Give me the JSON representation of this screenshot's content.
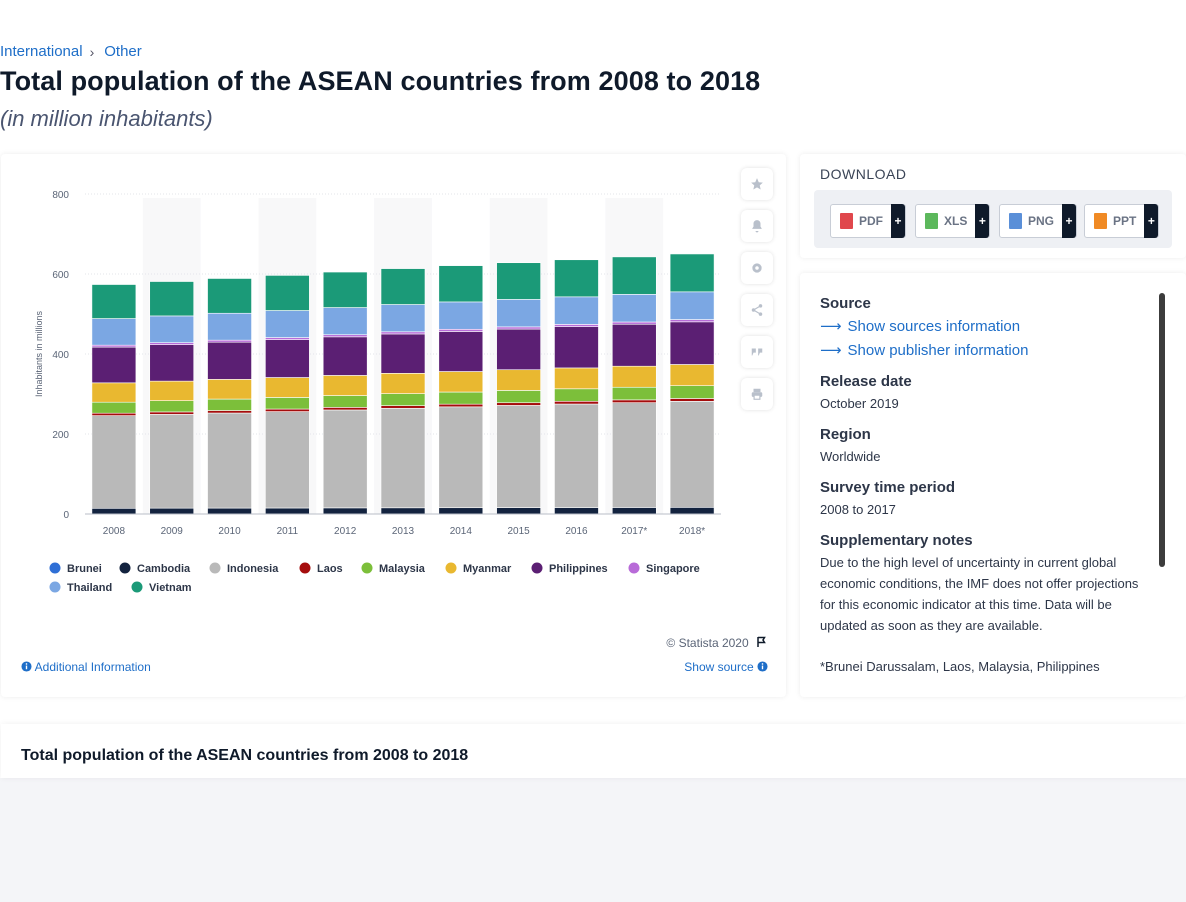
{
  "breadcrumb": {
    "item1": "International",
    "sep": "›",
    "item2": "Other"
  },
  "page": {
    "title": "Total population of the ASEAN countries from 2008 to 2018",
    "subtitle": "(in million inhabitants)"
  },
  "chart_card": {
    "copyright": "© Statista 2020",
    "additional_info": "Additional Information",
    "show_source": "Show source"
  },
  "download": {
    "title": "DOWNLOAD",
    "buttons": [
      {
        "label": "PDF",
        "color": "#e0474c"
      },
      {
        "label": "XLS",
        "color": "#5cb85c"
      },
      {
        "label": "PNG",
        "color": "#5a8fd8"
      },
      {
        "label": "PPT",
        "color": "#f08a24"
      }
    ],
    "plus": "+"
  },
  "info": {
    "source_h": "Source",
    "show_sources": "Show sources information",
    "show_publisher": "Show publisher information",
    "release_h": "Release date",
    "release_v": "October 2019",
    "region_h": "Region",
    "region_v": "Worldwide",
    "survey_h": "Survey time period",
    "survey_v": "2008 to 2017",
    "notes_h": "Supplementary notes",
    "notes_v": "Due to the high level of uncertainty in current global economic conditions, the IMF does not offer projections for this economic indicator at this time. Data will be updated as soon as they are available.",
    "notes_v2": "*Brunei Darussalam, Laos, Malaysia, Philippines"
  },
  "bottom": {
    "title": "Total population of the ASEAN countries from 2008 to 2018"
  },
  "chart_data": {
    "type": "bar",
    "stacked": true,
    "title": "",
    "xlabel": "",
    "ylabel": "Inhabitants in millions",
    "ylim": [
      0,
      800
    ],
    "yticks": [
      0,
      200,
      400,
      600,
      800
    ],
    "grid": true,
    "legend_position": "bottom-left",
    "categories": [
      "2008",
      "2009",
      "2010",
      "2011",
      "2012",
      "2013",
      "2014",
      "2015",
      "2016",
      "2017*",
      "2018*"
    ],
    "series": [
      {
        "name": "Brunei",
        "color": "#2f6fd6",
        "values": [
          0.4,
          0.4,
          0.4,
          0.4,
          0.4,
          0.4,
          0.4,
          0.4,
          0.4,
          0.4,
          0.4
        ]
      },
      {
        "name": "Cambodia",
        "color": "#13233f",
        "values": [
          13.9,
          14.2,
          14.4,
          14.6,
          14.9,
          15.1,
          15.3,
          15.5,
          15.8,
          16.0,
          16.3
        ]
      },
      {
        "name": "Indonesia",
        "color": "#b9b9b9",
        "values": [
          231.6,
          234.4,
          237.6,
          241.0,
          244.8,
          248.8,
          252.2,
          255.5,
          258.7,
          261.9,
          265.0
        ]
      },
      {
        "name": "Laos",
        "color": "#a50d0d",
        "values": [
          6.1,
          6.2,
          6.3,
          6.4,
          6.5,
          6.6,
          6.7,
          6.8,
          6.9,
          7.0,
          7.1
        ]
      },
      {
        "name": "Malaysia",
        "color": "#7cbf3a",
        "values": [
          27.5,
          28.1,
          28.6,
          29.0,
          29.5,
          30.0,
          30.3,
          30.7,
          31.2,
          31.6,
          32.0
        ]
      },
      {
        "name": "Myanmar",
        "color": "#e9b830",
        "values": [
          48.4,
          48.9,
          49.3,
          49.8,
          50.3,
          50.8,
          51.3,
          51.8,
          52.2,
          52.6,
          53.0
        ]
      },
      {
        "name": "Philippines",
        "color": "#5b1f73",
        "values": [
          89.4,
          91.1,
          92.9,
          94.7,
          96.5,
          98.4,
          100.1,
          101.6,
          103.2,
          104.9,
          106.6
        ]
      },
      {
        "name": "Singapore",
        "color": "#b86bd8",
        "values": [
          4.8,
          5.0,
          5.1,
          5.2,
          5.3,
          5.4,
          5.5,
          5.5,
          5.6,
          5.6,
          5.7
        ]
      },
      {
        "name": "Thailand",
        "color": "#7ba7e3",
        "values": [
          66.5,
          66.9,
          67.3,
          67.6,
          67.9,
          68.2,
          68.4,
          68.7,
          68.9,
          69.1,
          69.3
        ]
      },
      {
        "name": "Vietnam",
        "color": "#1b9a78",
        "values": [
          85.1,
          86.0,
          86.9,
          87.8,
          88.8,
          89.8,
          90.7,
          91.7,
          92.7,
          93.7,
          94.7
        ]
      }
    ]
  }
}
